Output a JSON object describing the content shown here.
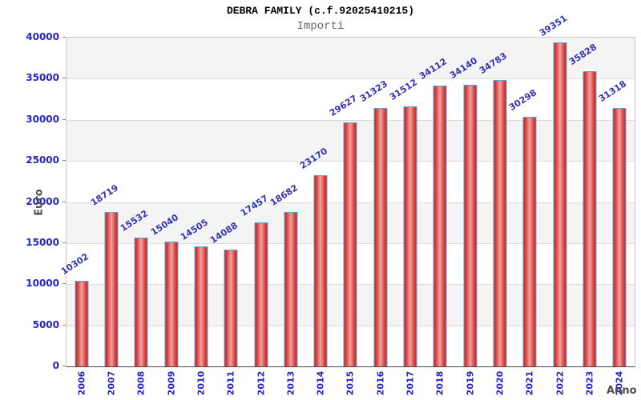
{
  "header": {
    "title": "DEBRA FAMILY (c.f.92025410215)",
    "subtitle": "Importi"
  },
  "chart_data": {
    "type": "bar",
    "title": "DEBRA FAMILY (c.f.92025410215)",
    "subtitle": "Importi",
    "xlabel": "Anno",
    "ylabel": "Euro",
    "categories": [
      "2006",
      "2007",
      "2008",
      "2009",
      "2010",
      "2011",
      "2012",
      "2013",
      "2014",
      "2015",
      "2016",
      "2017",
      "2018",
      "2019",
      "2020",
      "2021",
      "2022",
      "2023",
      "2024"
    ],
    "values": [
      10302,
      18719,
      15532,
      15040,
      14505,
      14088,
      17457,
      18682,
      23170,
      29627,
      31323,
      31512,
      34112,
      34140,
      34783,
      30298,
      39351,
      35828,
      31318
    ],
    "ylim": [
      0,
      40000
    ],
    "ytick_step": 5000,
    "yticks": [
      "0",
      "5000",
      "10000",
      "15000",
      "20000",
      "25000",
      "30000",
      "35000",
      "40000"
    ],
    "grid": "horizontal-bands",
    "legend": "none",
    "colors": {
      "bar_edge": "#c4281f",
      "bar_center": "#f0a3a1",
      "bar_border": "#58a6e0",
      "tick_label": "#2424cc",
      "value_label": "#3434b4",
      "axis_title": "#4d4d4d",
      "title": "#000000",
      "subtitle": "#666666",
      "band_gray": "#f4f4f4",
      "band_white": "#ffffff",
      "grid_line": "#dcdcdc"
    }
  }
}
